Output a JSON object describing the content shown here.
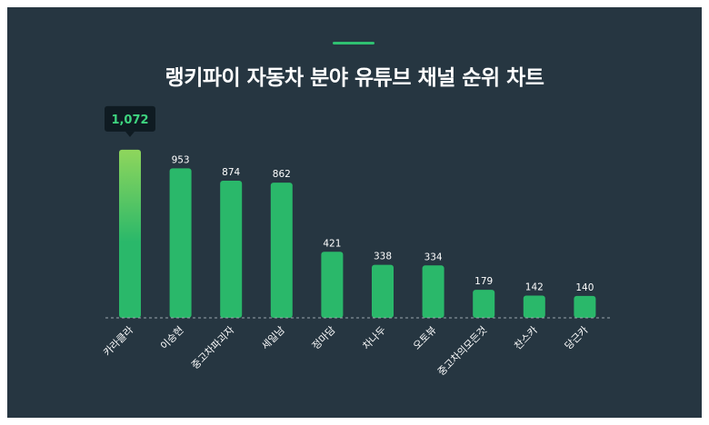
{
  "chart_data": {
    "type": "bar",
    "title": "랭키파이 자동차 분야 유튜브 채널 순위 차트",
    "categories": [
      "카라클라",
      "이승현",
      "중고차파괴자",
      "세일남",
      "정마담",
      "차나두",
      "오토뷰",
      "중고차의모든것",
      "찬스카",
      "당근카"
    ],
    "values": [
      1072,
      953,
      874,
      862,
      421,
      338,
      334,
      179,
      142,
      140
    ],
    "highlight": {
      "index": 0,
      "label": "1,072"
    },
    "ylim": [
      0,
      1100
    ],
    "grid": false,
    "colors": {
      "background": "#263641",
      "bar": "#2ab86a",
      "highlight_top": "#8fd65c",
      "callout_bg": "#0f1b22",
      "callout_text": "#3ed47f",
      "accent": "#2fc071"
    }
  }
}
